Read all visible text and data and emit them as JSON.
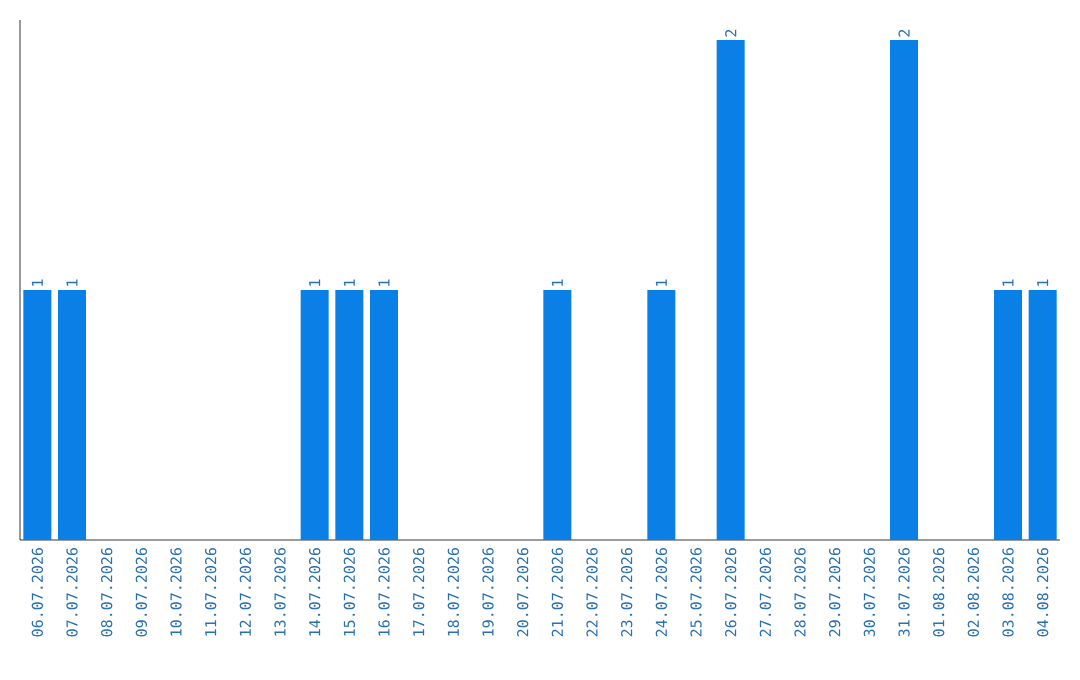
{
  "chart_data": {
    "type": "bar",
    "categories": [
      "06.07.2026",
      "07.07.2026",
      "08.07.2026",
      "09.07.2026",
      "10.07.2026",
      "11.07.2026",
      "12.07.2026",
      "13.07.2026",
      "14.07.2026",
      "15.07.2026",
      "16.07.2026",
      "17.07.2026",
      "18.07.2026",
      "19.07.2026",
      "20.07.2026",
      "21.07.2026",
      "22.07.2026",
      "23.07.2026",
      "24.07.2026",
      "25.07.2026",
      "26.07.2026",
      "27.07.2026",
      "28.07.2026",
      "29.07.2026",
      "30.07.2026",
      "31.07.2026",
      "01.08.2026",
      "02.08.2026",
      "03.08.2026",
      "04.08.2026"
    ],
    "values": [
      1,
      1,
      0,
      0,
      0,
      0,
      0,
      0,
      1,
      1,
      1,
      0,
      0,
      0,
      0,
      1,
      0,
      0,
      1,
      0,
      2,
      0,
      0,
      0,
      0,
      2,
      0,
      0,
      1,
      1
    ],
    "value_labels": [
      "1",
      "1",
      null,
      null,
      null,
      null,
      null,
      null,
      "1",
      "1",
      "1",
      null,
      null,
      null,
      null,
      "1",
      null,
      null,
      "1",
      null,
      "2",
      null,
      null,
      null,
      null,
      "2",
      null,
      null,
      "1",
      "1"
    ],
    "color": "#0a7fe6",
    "ylim": [
      0,
      2.08
    ],
    "tick_labels": "x"
  }
}
